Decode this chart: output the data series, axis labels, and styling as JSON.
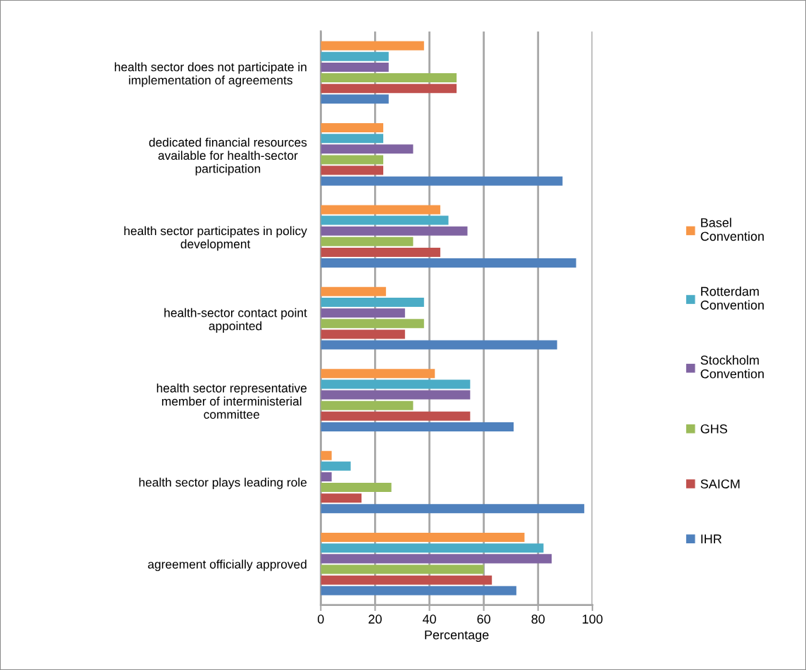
{
  "chart_data": {
    "type": "bar",
    "orientation": "horizontal",
    "xlabel": "Percentage",
    "categories": [
      "health sector does not participate in\nimplementation of agreements",
      "dedicated financial resources\navailable for health-sector\nparticipation",
      "health sector participates in policy\ndevelopment",
      "health-sector contact point\nappointed",
      "health sector representative\nmember of interministerial\ncommittee",
      "health sector plays leading role",
      "agreement officially approved"
    ],
    "series": [
      {
        "name": "IHR",
        "color": "#4f81bd",
        "values": [
          25,
          89,
          94,
          87,
          71,
          97,
          72
        ]
      },
      {
        "name": "SAICM",
        "color": "#c0504d",
        "values": [
          50,
          23,
          44,
          31,
          55,
          15,
          63
        ]
      },
      {
        "name": "GHS",
        "color": "#9bbb59",
        "values": [
          50,
          23,
          34,
          38,
          34,
          26,
          60
        ]
      },
      {
        "name": "Stockholm\nConvention",
        "color": "#8064a2",
        "values": [
          25,
          34,
          54,
          31,
          55,
          4,
          85
        ]
      },
      {
        "name": "Rotterdam\nConvention",
        "color": "#4bacc6",
        "values": [
          25,
          23,
          47,
          38,
          55,
          11,
          82
        ]
      },
      {
        "name": "Basel\nConvention",
        "color": "#f79646",
        "values": [
          38,
          23,
          44,
          24,
          42,
          4,
          75
        ]
      }
    ],
    "xlim": [
      0,
      100
    ],
    "xticks": [
      0,
      20,
      40,
      60,
      80,
      100
    ],
    "grid": "x",
    "legend": "right"
  }
}
